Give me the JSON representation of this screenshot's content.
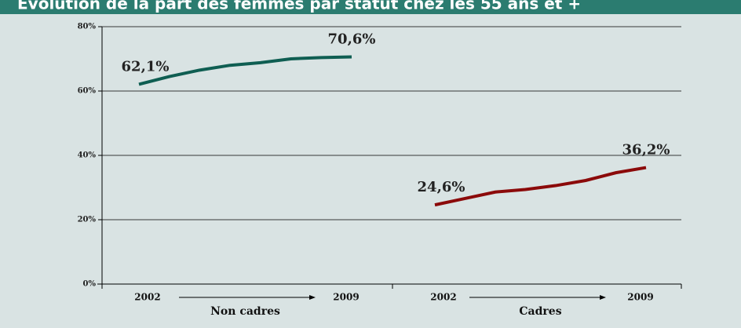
{
  "chart_data": {
    "type": "line",
    "title": "Evolution de la part des femmes par statut chez les 55 ans et +",
    "ylim": [
      0,
      80
    ],
    "yticks": [
      {
        "value": 0,
        "label": "0%"
      },
      {
        "value": 20,
        "label": "20%"
      },
      {
        "value": 40,
        "label": "40%"
      },
      {
        "value": 60,
        "label": "60%"
      },
      {
        "value": 80,
        "label": "80%"
      }
    ],
    "grid": true,
    "groups": [
      {
        "name": "Non cadres",
        "color": "#0f5e52",
        "categories": [
          "2002",
          null,
          null,
          null,
          null,
          null,
          null,
          "2009"
        ],
        "values": [
          62.1,
          64.5,
          66.5,
          68.0,
          68.8,
          70.0,
          70.4,
          70.6
        ],
        "value_labels": [
          "62,1%",
          null,
          null,
          null,
          null,
          null,
          null,
          "70,6%"
        ]
      },
      {
        "name": "Cadres",
        "color": "#8b0a0a",
        "categories": [
          "2002",
          null,
          null,
          null,
          null,
          null,
          null,
          "2009"
        ],
        "values": [
          24.6,
          26.6,
          28.6,
          29.4,
          30.6,
          32.2,
          34.6,
          36.2
        ],
        "value_labels": [
          "24,6%",
          null,
          null,
          null,
          null,
          null,
          null,
          "36,2%"
        ]
      }
    ]
  }
}
